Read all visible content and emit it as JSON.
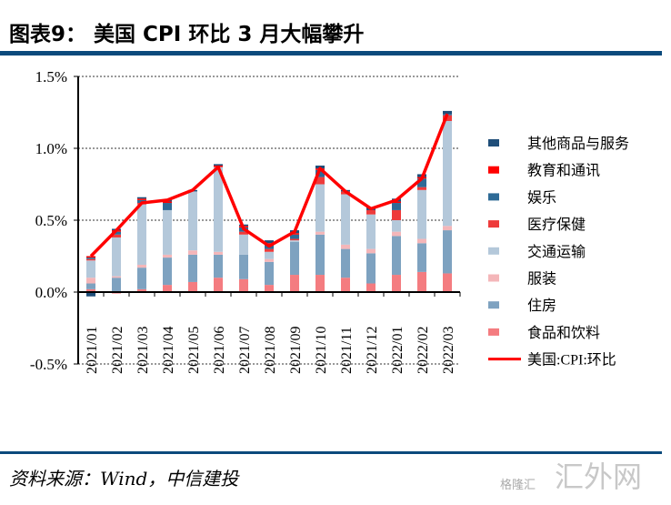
{
  "header": {
    "title": "图表9： 美国 CPI 环比 3 月大幅攀升"
  },
  "footer": {
    "source": "资料来源：Wind，中信建投",
    "watermark": "汇外网",
    "watermark_small": "格隆汇"
  },
  "chart_data": {
    "type": "bar",
    "stacked": true,
    "title": "",
    "ylim": [
      -0.5,
      1.5
    ],
    "yticks": [
      "-0.5%",
      "0.0%",
      "0.5%",
      "1.0%",
      "1.5%"
    ],
    "ytick_values": [
      -0.5,
      0,
      0.5,
      1.0,
      1.5
    ],
    "grid": "horizontal dashed",
    "legend": "right",
    "categories": [
      "2021/01",
      "2021/02",
      "2021/03",
      "2021/04",
      "2021/05",
      "2021/06",
      "2021/07",
      "2021/08",
      "2021/09",
      "2021/10",
      "2021/11",
      "2021/12",
      "2022/01",
      "2022/02",
      "2022/03"
    ],
    "series": [
      {
        "name": "食品和饮料",
        "color": "#f47c80",
        "values": [
          0.02,
          -0.01,
          0.02,
          0.05,
          0.07,
          0.1,
          0.09,
          0.05,
          0.12,
          0.12,
          0.1,
          0.06,
          0.12,
          0.14,
          0.13
        ]
      },
      {
        "name": "住房",
        "color": "#7ea2c0",
        "values": [
          0.04,
          0.1,
          0.15,
          0.19,
          0.19,
          0.16,
          0.17,
          0.16,
          0.23,
          0.28,
          0.2,
          0.21,
          0.27,
          0.2,
          0.3
        ]
      },
      {
        "name": "服装",
        "color": "#f4b6b9",
        "values": [
          0.04,
          0.01,
          0.02,
          0.02,
          0.03,
          0.02,
          0.0,
          0.02,
          0.0,
          0.02,
          0.03,
          0.03,
          0.03,
          0.03,
          0.03
        ]
      },
      {
        "name": "交通运输",
        "color": "#b4c8da",
        "values": [
          0.12,
          0.27,
          0.42,
          0.31,
          0.41,
          0.59,
          0.14,
          0.05,
          0.01,
          0.33,
          0.35,
          0.24,
          0.08,
          0.34,
          0.73
        ]
      },
      {
        "name": "医疗保健",
        "color": "#ee3b3b",
        "values": [
          0.01,
          0.02,
          0.01,
          0.0,
          0.0,
          0.0,
          0.02,
          0.02,
          0.01,
          0.05,
          0.02,
          0.03,
          0.07,
          0.02,
          0.04
        ]
      },
      {
        "name": "娱乐",
        "color": "#2e6a96",
        "values": [
          0.01,
          0.02,
          0.02,
          0.05,
          0.0,
          0.0,
          0.03,
          0.03,
          0.03,
          0.05,
          0.0,
          0.0,
          0.05,
          0.06,
          0.01
        ]
      },
      {
        "name": "教育和通讯",
        "color": "#ff0000",
        "values": [
          0.01,
          0.01,
          0.01,
          0.01,
          0.0,
          0.01,
          0.01,
          0.01,
          0.01,
          0.01,
          0.0,
          0.0,
          0.01,
          0.01,
          0.0
        ]
      },
      {
        "name": "其他商品与服务",
        "color": "#1f4e79",
        "values": [
          -0.03,
          0.01,
          0.01,
          0.01,
          0.01,
          0.01,
          0.01,
          0.02,
          0.02,
          0.02,
          0.01,
          0.02,
          0.02,
          0.02,
          0.02
        ]
      }
    ],
    "line": {
      "name": "美国:CPI:环比",
      "color": "#ff0000",
      "values": [
        0.25,
        0.43,
        0.62,
        0.64,
        0.71,
        0.87,
        0.44,
        0.32,
        0.42,
        0.86,
        0.7,
        0.58,
        0.64,
        0.79,
        1.24
      ]
    }
  }
}
